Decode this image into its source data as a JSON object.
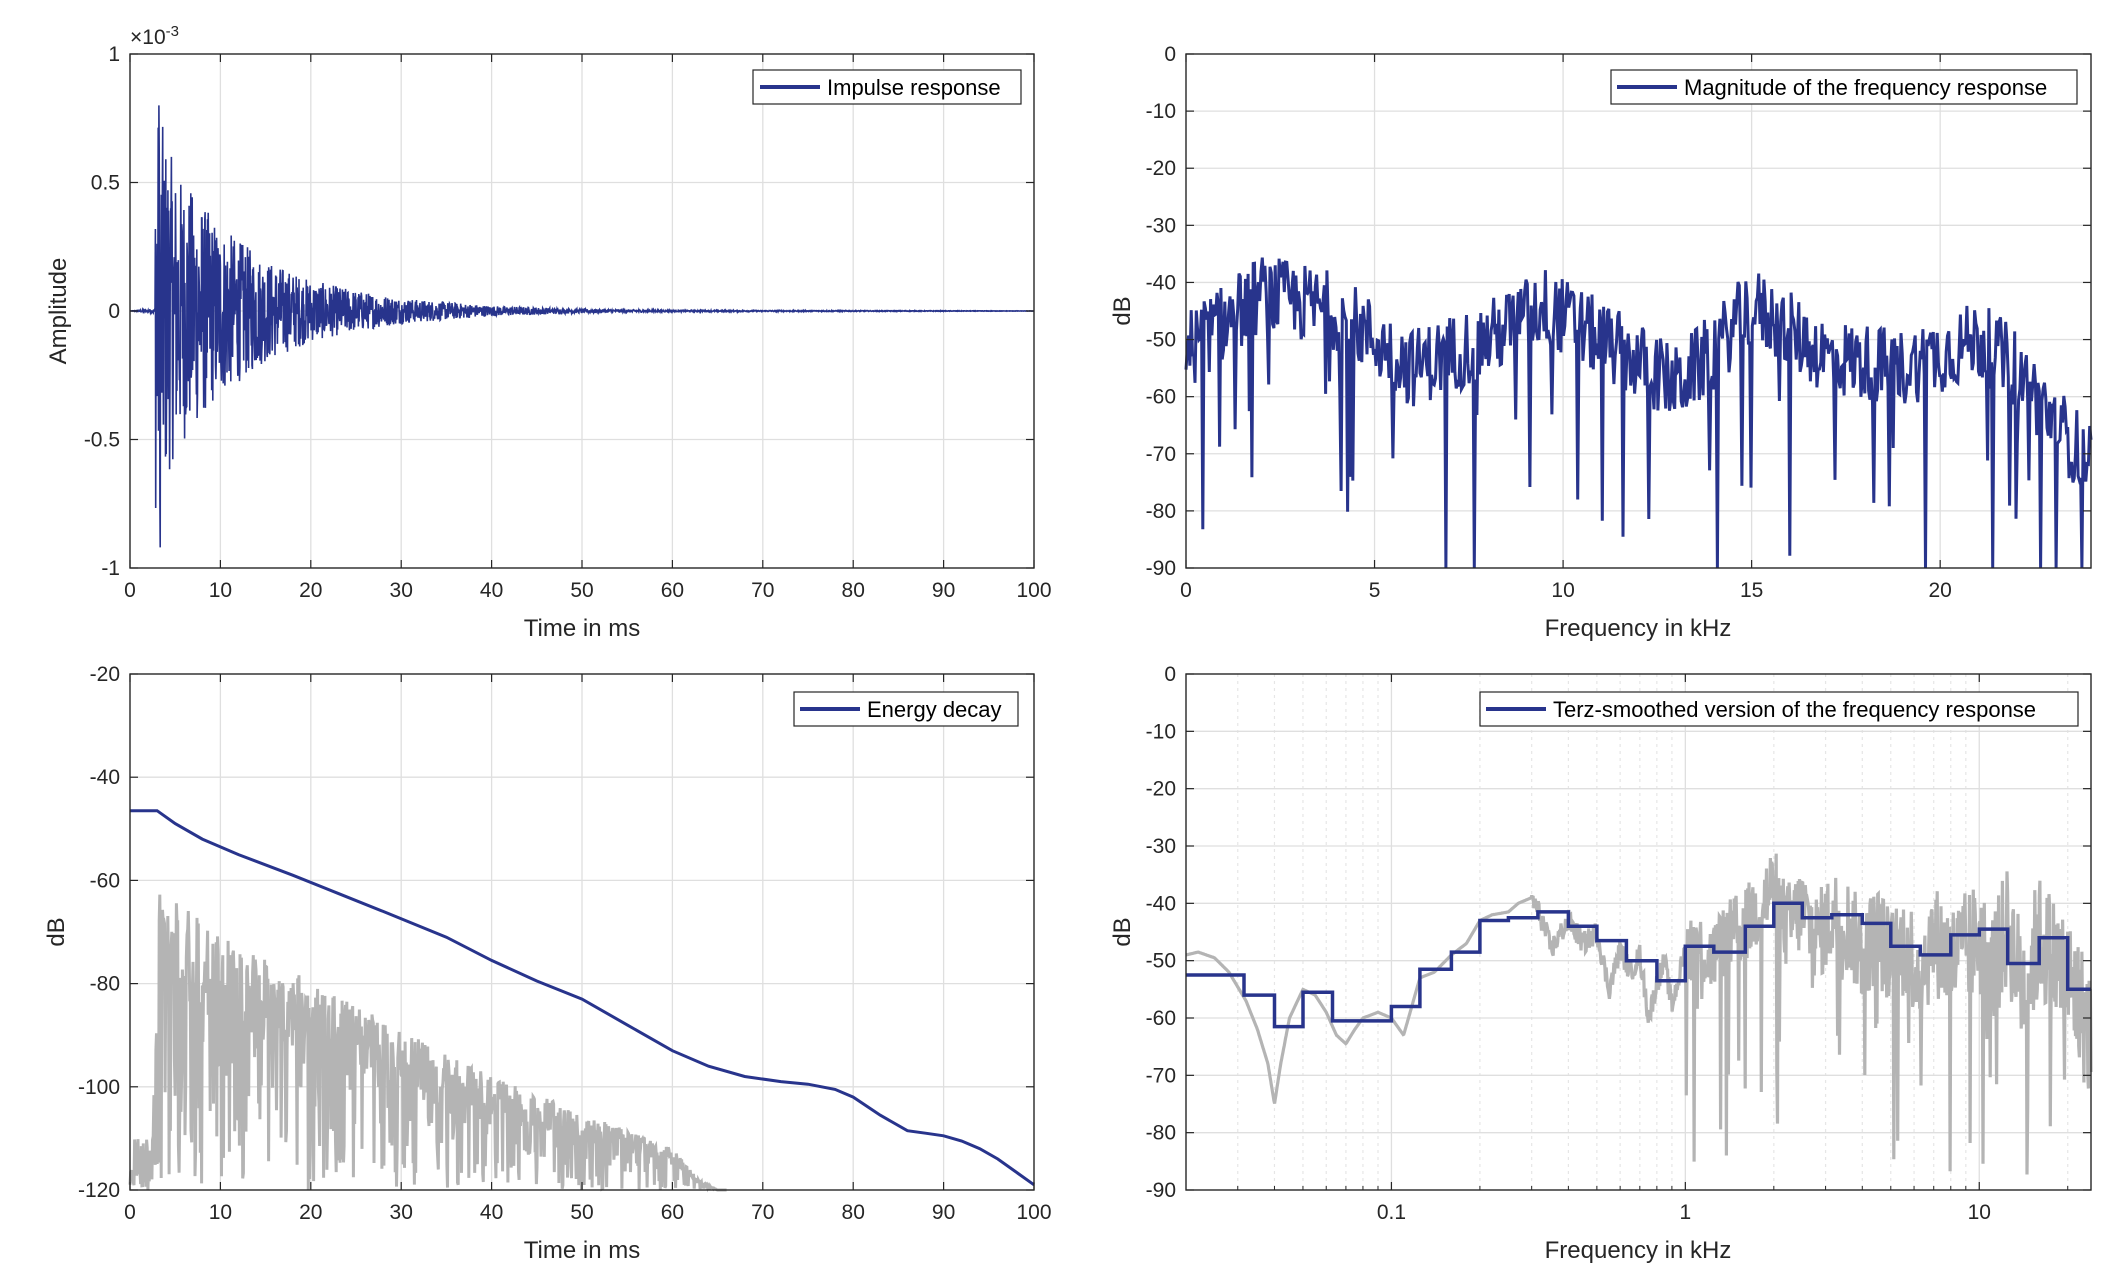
{
  "colors": {
    "primary": "#28348c",
    "secondary": "#b4b4b4",
    "grid": "#dfdfdf",
    "axis": "#262626"
  },
  "chart_data": [
    {
      "type": "line",
      "legend": "Impulse response",
      "legend_position": "top-right",
      "xlabel": "Time in ms",
      "ylabel": "Amplitude",
      "exponent_label": "×10",
      "exponent_power": "-3",
      "xlim": [
        0,
        100
      ],
      "ylim": [
        -1,
        1
      ],
      "xticks": [
        "0",
        "10",
        "20",
        "30",
        "40",
        "50",
        "60",
        "70",
        "80",
        "90",
        "100"
      ],
      "yticks": [
        "-1",
        "-0.5",
        "0",
        "0.5",
        "1"
      ],
      "grid": true,
      "series": [
        {
          "description_values": "oscillating decay",
          "onset_ms": 2.8,
          "peak_positive": 0.8,
          "peak_negative": -0.92,
          "envelope": [
            [
              3,
              0.8
            ],
            [
              5,
              0.55
            ],
            [
              10,
              0.33
            ],
            [
              15,
              0.2
            ],
            [
              20,
              0.12
            ],
            [
              25,
              0.08
            ],
            [
              30,
              0.05
            ],
            [
              40,
              0.02
            ],
            [
              50,
              0.008
            ],
            [
              60,
              0.003
            ],
            [
              100,
              0.0005
            ]
          ]
        }
      ]
    },
    {
      "type": "line",
      "legend": "Magnitude of the frequency response",
      "legend_position": "top-right",
      "xlabel": "Frequency in kHz",
      "ylabel": "dB",
      "xlim": [
        0,
        24
      ],
      "ylim": [
        -90,
        0
      ],
      "xticks": [
        "0",
        "5",
        "10",
        "15",
        "20"
      ],
      "yticks": [
        "0",
        "-10",
        "-20",
        "-30",
        "-40",
        "-50",
        "-60",
        "-70",
        "-80",
        "-90"
      ],
      "grid": true,
      "series": [
        {
          "mean_level_db": [
            [
              0,
              -52
            ],
            [
              2,
              -42
            ],
            [
              4,
              -45
            ],
            [
              6,
              -55
            ],
            [
              8,
              -50
            ],
            [
              9.5,
              -44
            ],
            [
              11,
              -50
            ],
            [
              13,
              -58
            ],
            [
              14,
              -52
            ],
            [
              15,
              -44
            ],
            [
              17,
              -53
            ],
            [
              19,
              -55
            ],
            [
              21,
              -50
            ],
            [
              22,
              -55
            ],
            [
              23,
              -64
            ],
            [
              24,
              -72
            ]
          ]
        }
      ]
    },
    {
      "type": "line",
      "legend": "Energy decay",
      "legend_position": "top-right",
      "xlabel": "Time in ms",
      "ylabel": "dB",
      "xlim": [
        0,
        100
      ],
      "ylim": [
        -120,
        -20
      ],
      "xticks": [
        "0",
        "10",
        "20",
        "30",
        "40",
        "50",
        "60",
        "70",
        "80",
        "90",
        "100"
      ],
      "yticks": [
        "-20",
        "-40",
        "-60",
        "-80",
        "-100",
        "-120"
      ],
      "grid": true,
      "series": [
        {
          "legend_shown": true,
          "x": [
            0,
            3,
            5,
            8,
            12,
            18,
            23,
            28,
            35,
            40,
            45,
            50,
            55,
            60,
            64,
            68,
            72,
            75,
            78,
            80,
            83,
            86,
            88,
            90,
            92,
            94,
            96,
            98,
            100
          ],
          "y": [
            -46.5,
            -46.5,
            -49,
            -52,
            -55,
            -59,
            -62.5,
            -66,
            -71,
            -75.5,
            -79.5,
            -83,
            -88,
            -93,
            -96,
            -98,
            -99,
            -99.5,
            -100.5,
            -102,
            -105.5,
            -108.5,
            -109,
            -109.5,
            -110.5,
            -112,
            -114,
            -116.5,
            -119
          ]
        },
        {
          "legend_shown": false,
          "upper_envelope": [
            [
              0,
              -110
            ],
            [
              2.5,
              -110
            ],
            [
              3.2,
              -61
            ],
            [
              10,
              -71
            ],
            [
              20,
              -79
            ],
            [
              30,
              -89
            ],
            [
              40,
              -98
            ],
            [
              50,
              -105
            ],
            [
              60,
              -112
            ],
            [
              63,
              -118
            ],
            [
              65,
              -120
            ]
          ],
          "lower_bound": -120
        }
      ]
    },
    {
      "type": "line",
      "legend": "Terz-smoothed version of the frequency response",
      "legend_position": "top-right",
      "xlabel": "Frequency in kHz",
      "ylabel": "dB",
      "xscale": "log",
      "xlim": [
        0.02,
        24
      ],
      "ylim": [
        -90,
        0
      ],
      "xticks": [
        "0.1",
        "1",
        "10"
      ],
      "yticks": [
        "0",
        "-10",
        "-20",
        "-30",
        "-40",
        "-50",
        "-60",
        "-70",
        "-80",
        "-90"
      ],
      "grid": true,
      "series": [
        {
          "legend_shown": true,
          "shape": "steps",
          "x": [
            0.02,
            0.025,
            0.0315,
            0.04,
            0.05,
            0.063,
            0.08,
            0.1,
            0.125,
            0.16,
            0.2,
            0.25,
            0.315,
            0.4,
            0.5,
            0.63,
            0.8,
            1.0,
            1.25,
            1.6,
            2.0,
            2.5,
            3.15,
            4.0,
            5.0,
            6.3,
            8.0,
            10.0,
            12.5,
            16.0,
            20.0,
            24.0
          ],
          "y": [
            -52.5,
            -52.5,
            -56,
            -61.5,
            -55.5,
            -60.5,
            -60.5,
            -58,
            -51.5,
            -48.5,
            -43,
            -42.5,
            -41.5,
            -44,
            -46.5,
            -50,
            -53.5,
            -47.5,
            -48.5,
            -44,
            -40,
            -42.5,
            -42,
            -43.5,
            -47.5,
            -49,
            -45.5,
            -44.5,
            -50.5,
            -46,
            -55,
            -55
          ]
        },
        {
          "legend_shown": false,
          "x": [
            0.02,
            0.022,
            0.025,
            0.028,
            0.032,
            0.035,
            0.038,
            0.04,
            0.042,
            0.045,
            0.05,
            0.055,
            0.06,
            0.065,
            0.07,
            0.075,
            0.08,
            0.09,
            0.1,
            0.11,
            0.125,
            0.14,
            0.16,
            0.18,
            0.2,
            0.22,
            0.25,
            0.27,
            0.3,
            0.32,
            0.35,
            0.4,
            0.45,
            0.5,
            0.55,
            0.6,
            0.65,
            0.7,
            0.75,
            0.8,
            0.85,
            0.9,
            1.0,
            1.1,
            1.2,
            1.4,
            1.6,
            1.8,
            2.0,
            2.2,
            2.5,
            2.8,
            3.2,
            3.6,
            4.0,
            4.5,
            5.0,
            5.6,
            6.3,
            7.0,
            8.0,
            9.0,
            10.0,
            11.0,
            12.5,
            14.0,
            16.0,
            18.0,
            20.0,
            22.0,
            24.0
          ],
          "y": [
            -49,
            -48.5,
            -49.5,
            -52,
            -57,
            -62,
            -68,
            -75,
            -68,
            -60,
            -55,
            -56,
            -59,
            -63,
            -64.5,
            -62,
            -60,
            -59,
            -60,
            -63,
            -53,
            -52,
            -49,
            -47,
            -43,
            -42,
            -41.5,
            -40,
            -39,
            -42,
            -48,
            -43,
            -47,
            -45,
            -55,
            -48,
            -52,
            -49,
            -60,
            -54,
            -50,
            -58,
            -48,
            -47,
            -50,
            -46,
            -44,
            -40,
            -37,
            -44,
            -41,
            -46,
            -42,
            -44,
            -49,
            -45,
            -50,
            -47,
            -52,
            -46,
            -50,
            -48,
            -46,
            -52,
            -44,
            -55,
            -46,
            -50,
            -53,
            -58,
            -63
          ]
        }
      ]
    }
  ]
}
